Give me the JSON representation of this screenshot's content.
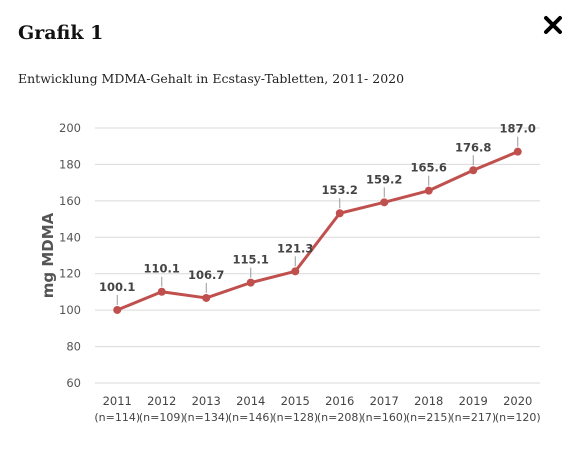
{
  "modal": {
    "title": "Grafik 1",
    "subtitle": "Entwicklung MDMA-Gehalt in Ecstasy-Tabletten, 2011- 2020",
    "close_icon": "close-icon"
  },
  "chart_data": {
    "type": "line",
    "title": "",
    "xlabel": "",
    "ylabel": "mg MDMA",
    "ylim": [
      60,
      200
    ],
    "yticks": [
      60,
      80,
      100,
      120,
      140,
      160,
      180,
      200
    ],
    "grid": true,
    "categories": [
      "2011",
      "2012",
      "2013",
      "2014",
      "2015",
      "2016",
      "2017",
      "2018",
      "2019",
      "2020"
    ],
    "category_sublabels": [
      "(n=114)",
      "(n=109)",
      "(n=134)",
      "(n=146)",
      "(n=128)",
      "(n=208)",
      "(n=160)",
      "(n=215)",
      "(n=217)",
      "(n=120)"
    ],
    "series": [
      {
        "values": [
          100.1,
          110.1,
          106.7,
          115.1,
          121.3,
          153.2,
          159.2,
          165.6,
          176.8,
          187.0
        ],
        "labels": [
          "100.1",
          "110.1",
          "106.7",
          "115.1",
          "121.3",
          "153.2",
          "159.2",
          "165.6",
          "176.8",
          "187.0"
        ],
        "color": "#c0504d"
      }
    ],
    "colors": {
      "grid": "#d9d9d9",
      "line": "#c0504d",
      "text": "#555555"
    }
  }
}
